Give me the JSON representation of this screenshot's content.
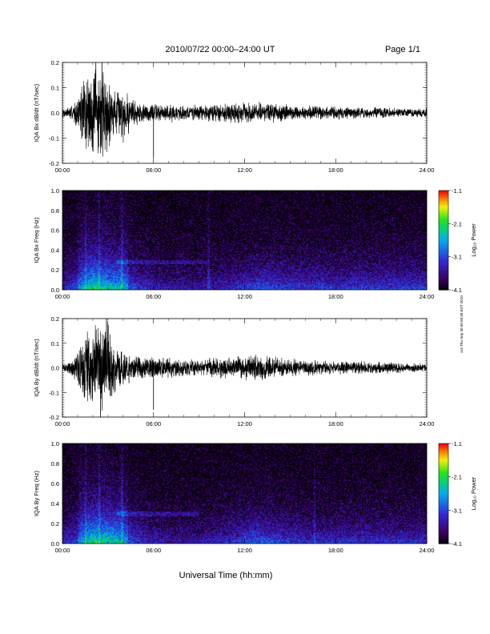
{
  "header": {
    "title": "2010/07/22  00:00–24:00 UT",
    "page": "Page 1/1"
  },
  "footer": {
    "xlabel": "Universal Time (hh:mm)"
  },
  "side_note": "sss Thu Sep 30 09:58:48 EDT 2010",
  "colorbar": {
    "label": "Log₁₀ Power",
    "ticks": [
      "-1.1",
      "-2.1",
      "-3.1",
      "-4.1"
    ],
    "range": [
      -4.1,
      -1.1
    ]
  },
  "chart_data": [
    {
      "type": "line",
      "name": "bx-dbdt",
      "ylabel": "IQA Bx dB/dt (nT/sec)",
      "ylim": [
        -0.2,
        0.2
      ],
      "yticks": [
        "0.2",
        "0.1",
        "0.0",
        "-0.1",
        "-0.2"
      ],
      "xlim": [
        "00:00",
        "24:00"
      ],
      "xticks": [
        "00:00",
        "06:00",
        "12:00",
        "18:00",
        "24:00"
      ],
      "envelope": {
        "x_hours": [
          0,
          0.5,
          1,
          1.5,
          2,
          2.3,
          2.7,
          3,
          3.5,
          4,
          4.5,
          5,
          6,
          7,
          8,
          9,
          10,
          11,
          12,
          13,
          14,
          15,
          16,
          17,
          18,
          19,
          20,
          21,
          22,
          23,
          24
        ],
        "amplitude": [
          0.02,
          0.03,
          0.06,
          0.2,
          0.2,
          0.2,
          0.2,
          0.16,
          0.1,
          0.12,
          0.08,
          0.05,
          0.04,
          0.04,
          0.035,
          0.035,
          0.04,
          0.045,
          0.045,
          0.045,
          0.04,
          0.035,
          0.03,
          0.03,
          0.03,
          0.025,
          0.025,
          0.025,
          0.02,
          0.02,
          0.02
        ]
      },
      "spikes": [
        {
          "x": 6.0,
          "y": -0.18
        },
        {
          "x": 2.2,
          "y": 0.2
        },
        {
          "x": 2.6,
          "y": 0.2
        }
      ]
    },
    {
      "type": "heatmap",
      "name": "bx-freq",
      "ylabel": "IQA Bx Freq (Hz)",
      "ylim": [
        0.0,
        1.0
      ],
      "yticks": [
        "1.0",
        "0.8",
        "0.6",
        "0.4",
        "0.2",
        "0.0"
      ],
      "xlim": [
        "00:00",
        "24:00"
      ],
      "xticks": [
        "00:00",
        "06:00",
        "12:00",
        "18:00",
        "24:00"
      ],
      "zlim": [
        -4.1,
        -1.1
      ],
      "low_freq_power_by_hour": [
        -3.5,
        -3.2,
        -2.6,
        -2.8,
        -3.0,
        -3.3,
        -3.5,
        -3.6,
        -3.6,
        -3.6,
        -3.5,
        -3.5,
        -3.3,
        -3.2,
        -3.2,
        -3.3,
        -3.3,
        -3.3,
        -3.4,
        -3.3,
        -3.3,
        -3.3,
        -3.3,
        -3.3,
        -3.3
      ],
      "vertical_lines_hours": [
        1.5,
        2.4,
        3.9,
        9.6
      ],
      "horizontal_band": {
        "freq_hz": 0.28,
        "from_hour": 3.5,
        "to_hour": 9.5
      }
    },
    {
      "type": "line",
      "name": "by-dbdt",
      "ylabel": "IQA By dB/dt (nT/sec)",
      "ylim": [
        -0.2,
        0.2
      ],
      "yticks": [
        "0.2",
        "0.1",
        "0.0",
        "-0.1",
        "-0.2"
      ],
      "xlim": [
        "00:00",
        "24:00"
      ],
      "xticks": [
        "00:00",
        "06:00",
        "12:00",
        "18:00",
        "24:00"
      ],
      "envelope": {
        "x_hours": [
          0,
          0.5,
          1,
          1.5,
          2,
          2.3,
          2.7,
          3,
          3.5,
          4,
          4.5,
          5,
          6,
          7,
          8,
          9,
          10,
          11,
          12,
          13,
          14,
          15,
          16,
          17,
          18,
          19,
          20,
          21,
          22,
          23,
          24
        ],
        "amplitude": [
          0.02,
          0.03,
          0.07,
          0.2,
          0.2,
          0.2,
          0.2,
          0.2,
          0.1,
          0.09,
          0.06,
          0.05,
          0.05,
          0.05,
          0.04,
          0.04,
          0.045,
          0.05,
          0.06,
          0.06,
          0.05,
          0.04,
          0.035,
          0.035,
          0.03,
          0.03,
          0.03,
          0.025,
          0.025,
          0.02,
          0.02
        ]
      },
      "spikes": [
        {
          "x": 6.0,
          "y": -0.17
        },
        {
          "x": 2.5,
          "y": -0.2
        },
        {
          "x": 2.9,
          "y": 0.2
        }
      ]
    },
    {
      "type": "heatmap",
      "name": "by-freq",
      "ylabel": "IQA By Freq (Hz)",
      "ylim": [
        0.0,
        1.0
      ],
      "yticks": [
        "1.0",
        "0.8",
        "0.6",
        "0.4",
        "0.2",
        "0.0"
      ],
      "xlim": [
        "00:00",
        "24:00"
      ],
      "xticks": [
        "00:00",
        "06:00",
        "12:00",
        "18:00",
        "24:00"
      ],
      "zlim": [
        -4.1,
        -1.1
      ],
      "low_freq_power_by_hour": [
        -3.5,
        -3.2,
        -2.6,
        -2.7,
        -3.0,
        -3.3,
        -3.5,
        -3.6,
        -3.6,
        -3.6,
        -3.5,
        -3.4,
        -3.2,
        -3.1,
        -3.2,
        -3.3,
        -3.4,
        -3.4,
        -3.4,
        -3.4,
        -3.4,
        -3.4,
        -3.4,
        -3.4,
        -3.4
      ],
      "vertical_lines_hours": [
        1.5,
        2.4,
        3.9,
        16.6
      ],
      "horizontal_band": {
        "freq_hz": 0.3,
        "from_hour": 3.5,
        "to_hour": 9.0
      }
    }
  ]
}
